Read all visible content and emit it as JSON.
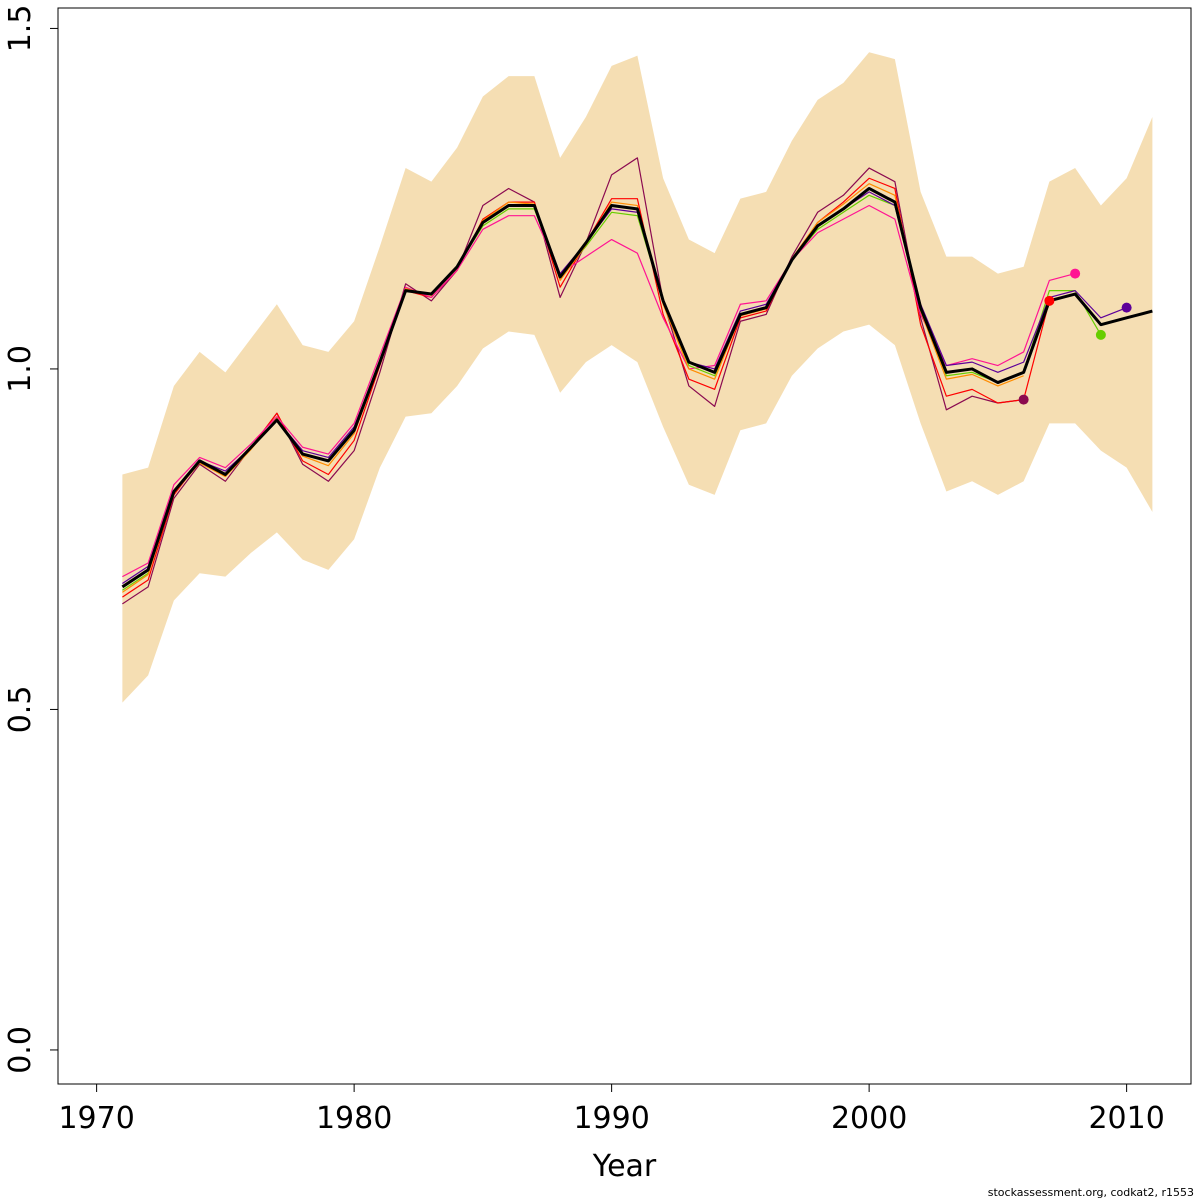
{
  "chart_data": {
    "type": "line",
    "title": "",
    "xlabel": "Year",
    "ylabel": "",
    "xlim": [
      1968.5,
      2012.5
    ],
    "ylim": [
      -0.05,
      1.53
    ],
    "x_ticks": [
      1970,
      1980,
      1990,
      2000,
      2010
    ],
    "x_tick_labels": [
      "1970",
      "1980",
      "1990",
      "2000",
      "2010"
    ],
    "y_ticks": [
      0.0,
      0.5,
      1.0,
      1.5
    ],
    "y_tick_labels": [
      "0.0",
      "0.5",
      "1.0",
      "1.5"
    ],
    "grid": false,
    "legend": "none",
    "confidence_band": {
      "color": "#F5DEB3",
      "x": [
        1971,
        1972,
        1973,
        1974,
        1975,
        1976,
        1977,
        1978,
        1979,
        1980,
        1981,
        1982,
        1983,
        1984,
        1985,
        1986,
        1987,
        1988,
        1989,
        1990,
        1991,
        1992,
        1993,
        1994,
        1995,
        1996,
        1997,
        1998,
        1999,
        2000,
        2001,
        2002,
        2003,
        2004,
        2005,
        2006,
        2007,
        2008,
        2009,
        2010,
        2011
      ],
      "lower": [
        0.51,
        0.55,
        0.66,
        0.7,
        0.695,
        0.73,
        0.76,
        0.72,
        0.705,
        0.75,
        0.855,
        0.93,
        0.935,
        0.975,
        1.03,
        1.055,
        1.05,
        0.965,
        1.01,
        1.035,
        1.01,
        0.915,
        0.83,
        0.815,
        0.91,
        0.92,
        0.99,
        1.03,
        1.055,
        1.065,
        1.035,
        0.92,
        0.82,
        0.835,
        0.815,
        0.835,
        0.92,
        0.92,
        0.88,
        0.855,
        0.79
      ],
      "upper": [
        0.845,
        0.855,
        0.975,
        1.025,
        0.995,
        1.045,
        1.095,
        1.035,
        1.025,
        1.07,
        1.18,
        1.295,
        1.275,
        1.325,
        1.4,
        1.43,
        1.43,
        1.31,
        1.37,
        1.445,
        1.46,
        1.28,
        1.19,
        1.17,
        1.25,
        1.26,
        1.335,
        1.395,
        1.42,
        1.465,
        1.455,
        1.26,
        1.165,
        1.165,
        1.14,
        1.15,
        1.275,
        1.295,
        1.24,
        1.28,
        1.37
      ]
    },
    "series": [
      {
        "color": "#000000",
        "x": [
          1971,
          1972,
          1973,
          1974,
          1975,
          1976,
          1977,
          1978,
          1979,
          1980,
          1981,
          1982,
          1983,
          1984,
          1985,
          1986,
          1987,
          1988,
          1989,
          1990,
          1991,
          1992,
          1993,
          1994,
          1995,
          1996,
          1997,
          1998,
          1999,
          2000,
          2001,
          2002,
          2003,
          2004,
          2005,
          2006,
          2007,
          2008,
          2009,
          2010,
          2011
        ],
        "values": [
          0.68,
          0.705,
          0.82,
          0.865,
          0.845,
          0.885,
          0.925,
          0.875,
          0.865,
          0.91,
          1.01,
          1.115,
          1.11,
          1.15,
          1.215,
          1.24,
          1.24,
          1.135,
          1.185,
          1.24,
          1.235,
          1.1,
          1.01,
          0.995,
          1.08,
          1.09,
          1.16,
          1.21,
          1.235,
          1.265,
          1.245,
          1.09,
          0.995,
          1.0,
          0.98,
          0.995,
          1.1,
          1.11,
          1.065,
          1.075,
          1.085
        ]
      },
      {
        "color": "#8B0A50",
        "x": [
          1971,
          1972,
          1973,
          1974,
          1975,
          1976,
          1977,
          1978,
          1979,
          1980,
          1981,
          1982,
          1983,
          1984,
          1985,
          1986,
          1987,
          1988,
          1989,
          1990,
          1991,
          1992,
          1993,
          1994,
          1995,
          1996,
          1997,
          1998,
          1999,
          2000,
          2001,
          2002,
          2003,
          2004,
          2005,
          2006
        ],
        "values": [
          0.655,
          0.68,
          0.81,
          0.86,
          0.835,
          0.885,
          0.935,
          0.86,
          0.835,
          0.88,
          0.995,
          1.125,
          1.1,
          1.145,
          1.24,
          1.265,
          1.245,
          1.105,
          1.185,
          1.285,
          1.31,
          1.1,
          0.975,
          0.945,
          1.07,
          1.08,
          1.165,
          1.23,
          1.255,
          1.295,
          1.275,
          1.075,
          0.94,
          0.96,
          0.95,
          0.955
        ],
        "point": [
          2006,
          0.955
        ]
      },
      {
        "color": "#FF0000",
        "x": [
          1971,
          1972,
          1973,
          1974,
          1975,
          1976,
          1977,
          1978,
          1979,
          1980,
          1981,
          1982,
          1983,
          1984,
          1985,
          1986,
          1987,
          1988,
          1989,
          1990,
          1991,
          1992,
          1993,
          1994,
          1995,
          1996,
          1997,
          1998,
          1999,
          2000,
          2001,
          2002,
          2003,
          2004,
          2005,
          2006,
          2007
        ],
        "values": [
          0.665,
          0.69,
          0.815,
          0.865,
          0.845,
          0.885,
          0.935,
          0.865,
          0.845,
          0.895,
          1.005,
          1.115,
          1.105,
          1.145,
          1.22,
          1.245,
          1.245,
          1.12,
          1.185,
          1.25,
          1.25,
          1.08,
          0.985,
          0.97,
          1.075,
          1.085,
          1.16,
          1.215,
          1.245,
          1.28,
          1.265,
          1.065,
          0.96,
          0.97,
          0.95,
          0.955,
          1.1
        ],
        "point": [
          2007,
          1.1
        ]
      },
      {
        "color": "#FF1493",
        "x": [
          1971,
          1972,
          1973,
          1974,
          1975,
          1976,
          1977,
          1978,
          1979,
          1980,
          1981,
          1982,
          1983,
          1984,
          1985,
          1986,
          1987,
          1988,
          1989,
          1990,
          1991,
          1992,
          1993,
          1994,
          1995,
          1996,
          1997,
          1998,
          1999,
          2000,
          2001,
          2002,
          2003,
          2004,
          2005,
          2006,
          2007,
          2008
        ],
        "values": [
          0.695,
          0.715,
          0.83,
          0.87,
          0.855,
          0.89,
          0.93,
          0.885,
          0.875,
          0.92,
          1.02,
          1.12,
          1.105,
          1.145,
          1.205,
          1.225,
          1.225,
          1.14,
          1.165,
          1.19,
          1.17,
          1.075,
          1.0,
          1.005,
          1.095,
          1.1,
          1.16,
          1.2,
          1.22,
          1.24,
          1.22,
          1.08,
          1.005,
          1.015,
          1.005,
          1.025,
          1.13,
          1.14
        ],
        "point": [
          2008,
          1.14
        ]
      },
      {
        "color": "#66CD00",
        "x": [
          1971,
          1972,
          1973,
          1974,
          1975,
          1976,
          1977,
          1978,
          1979,
          1980,
          1981,
          1982,
          1983,
          1984,
          1985,
          1986,
          1987,
          1988,
          1989,
          1990,
          1991,
          1992,
          1993,
          1994,
          1995,
          1996,
          1997,
          1998,
          1999,
          2000,
          2001,
          2002,
          2003,
          2004,
          2005,
          2006,
          2007,
          2008,
          2009
        ],
        "values": [
          0.675,
          0.7,
          0.82,
          0.865,
          0.845,
          0.885,
          0.925,
          0.875,
          0.865,
          0.91,
          1.01,
          1.115,
          1.11,
          1.15,
          1.21,
          1.235,
          1.235,
          1.135,
          1.18,
          1.23,
          1.225,
          1.1,
          1.005,
          0.99,
          1.08,
          1.09,
          1.16,
          1.205,
          1.23,
          1.255,
          1.24,
          1.09,
          0.99,
          0.995,
          0.98,
          0.995,
          1.115,
          1.115,
          1.05
        ],
        "point": [
          2009,
          1.05
        ]
      },
      {
        "color": "#5D0099",
        "x": [
          1971,
          1972,
          1973,
          1974,
          1975,
          1976,
          1977,
          1978,
          1979,
          1980,
          1981,
          1982,
          1983,
          1984,
          1985,
          1986,
          1987,
          1988,
          1989,
          1990,
          1991,
          1992,
          1993,
          1994,
          1995,
          1996,
          1997,
          1998,
          1999,
          2000,
          2001,
          2002,
          2003,
          2004,
          2005,
          2006,
          2007,
          2008,
          2009,
          2010
        ],
        "values": [
          0.685,
          0.71,
          0.82,
          0.865,
          0.85,
          0.885,
          0.925,
          0.88,
          0.87,
          0.915,
          1.01,
          1.115,
          1.11,
          1.15,
          1.215,
          1.24,
          1.24,
          1.14,
          1.185,
          1.235,
          1.23,
          1.1,
          1.01,
          1.0,
          1.085,
          1.095,
          1.16,
          1.21,
          1.235,
          1.26,
          1.24,
          1.095,
          1.005,
          1.01,
          0.995,
          1.01,
          1.105,
          1.115,
          1.075,
          1.09
        ],
        "point": [
          2010,
          1.09
        ]
      },
      {
        "color": "#FF8C00",
        "x": [
          1971,
          1972,
          1973,
          1974,
          1975,
          1976,
          1977,
          1978,
          1979,
          1980,
          1981,
          1982,
          1983,
          1984,
          1985,
          1986,
          1987,
          1988,
          1989,
          1990,
          1991,
          1992,
          1993,
          1994,
          1995,
          1996,
          1997,
          1998,
          1999,
          2000,
          2001,
          2002,
          2003,
          2004,
          2005,
          2006
        ],
        "values": [
          0.672,
          0.698,
          0.818,
          0.862,
          0.842,
          0.882,
          0.928,
          0.872,
          0.858,
          0.905,
          1.008,
          1.118,
          1.108,
          1.148,
          1.218,
          1.245,
          1.242,
          1.13,
          1.182,
          1.245,
          1.24,
          1.095,
          1.0,
          0.985,
          1.078,
          1.088,
          1.162,
          1.215,
          1.242,
          1.272,
          1.255,
          1.085,
          0.985,
          0.992,
          0.975,
          0.99
        ]
      }
    ]
  },
  "credit": "stockassessment.org, codkat2, r1553"
}
